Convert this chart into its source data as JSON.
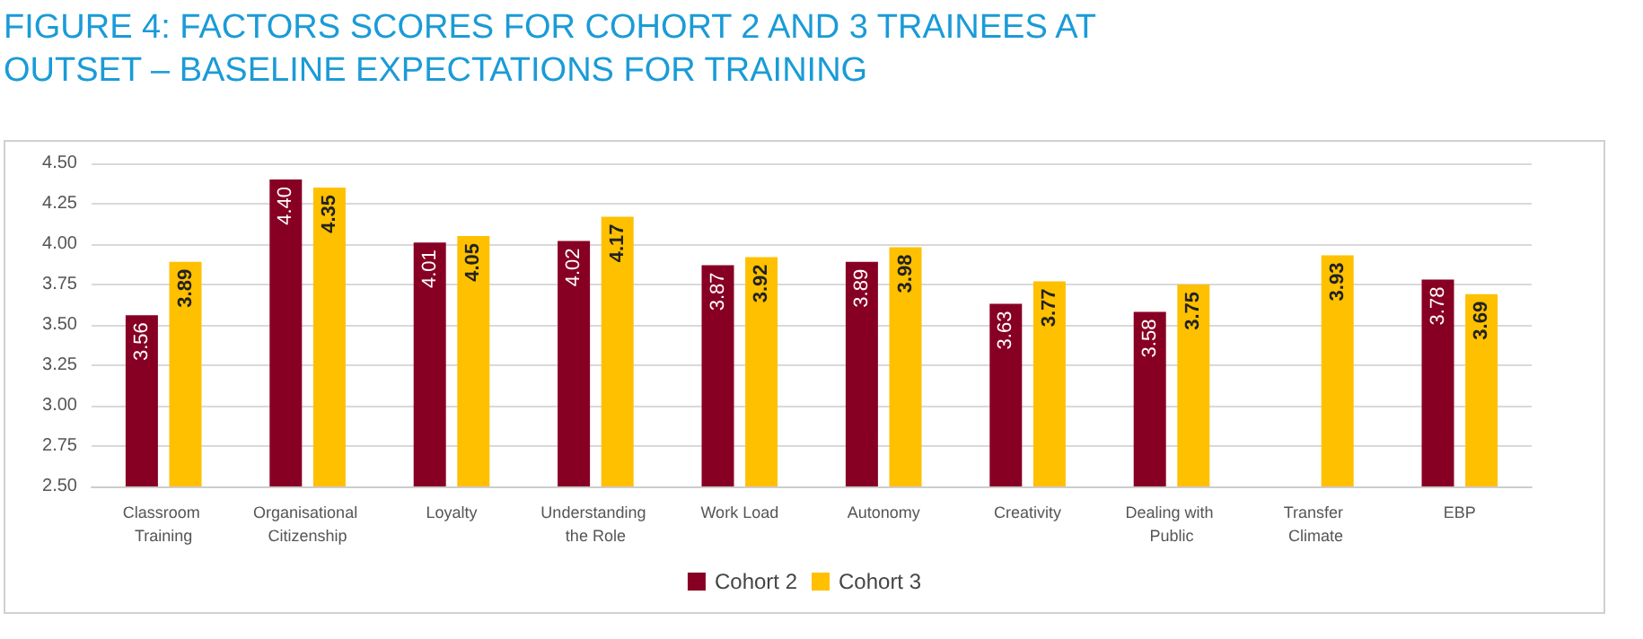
{
  "chart_data": {
    "type": "bar",
    "title": "FIGURE 4: FACTORS SCORES FOR COHORT 2 AND 3 TRAINEES AT OUTSET – BASELINE EXPECTATIONS FOR TRAINING",
    "categories": [
      "Classroom Training",
      "Organisational Citizenship",
      "Loyalty",
      "Understanding the Role",
      "Work Load",
      "Autonomy",
      "Creativity",
      "Dealing with Public",
      "Transfer Climate",
      "EBP"
    ],
    "series": [
      {
        "name": "Cohort 2",
        "color": "#870024",
        "values": [
          3.56,
          4.4,
          4.01,
          4.02,
          3.87,
          3.89,
          3.63,
          3.58,
          null,
          3.78
        ],
        "value_labels": [
          "3.56",
          "4.40",
          "4.01",
          "4.02",
          "3.87",
          "3.89",
          "3.63",
          "3.58",
          null,
          "3.78"
        ]
      },
      {
        "name": "Cohort 3",
        "color": "#ffc000",
        "values": [
          3.89,
          4.35,
          4.05,
          4.17,
          3.92,
          3.98,
          3.77,
          3.75,
          3.93,
          3.69
        ],
        "value_labels": [
          "3.89",
          "4.35",
          "4.05",
          "4.17",
          "3.92",
          "3.98",
          "3.77",
          "3.75",
          "3.93",
          "3.69"
        ]
      }
    ],
    "ylim": [
      2.5,
      4.5
    ],
    "yticks": [
      {
        "value": 2.5,
        "label": "2.50"
      },
      {
        "value": 2.75,
        "label": "2.75"
      },
      {
        "value": 3,
        "label": "3.00"
      },
      {
        "value": 3.25,
        "label": "3.25"
      },
      {
        "value": 3.5,
        "label": "3.50"
      },
      {
        "value": 3.75,
        "label": "3.75"
      },
      {
        "value": 4,
        "label": "4.00"
      },
      {
        "value": 4.25,
        "label": "4.25"
      },
      {
        "value": 4.5,
        "label": "4.50"
      }
    ],
    "grid": "y",
    "legend": "bottom"
  }
}
